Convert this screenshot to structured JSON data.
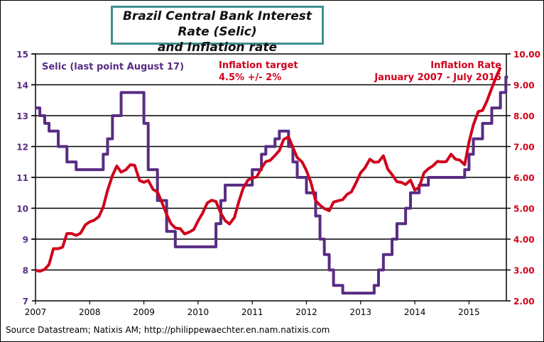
{
  "chart_data": {
    "type": "line",
    "title": "Brazil Central Bank Interest Rate (Selic) and Inflation rate",
    "title_lines": [
      "Brazil Central Bank Interest Rate (Selic)",
      "and Inflation rate"
    ],
    "xlabel": "",
    "ylabel_left": "",
    "ylabel_right": "",
    "x_ticks": [
      "2007",
      "2008",
      "2009",
      "2010",
      "2011",
      "2012",
      "2013",
      "2014",
      "2015"
    ],
    "xlim": [
      2007,
      2015.85
    ],
    "y_left": {
      "lim": [
        7,
        15
      ],
      "ticks": [
        "7",
        "8",
        "9",
        "10",
        "11",
        "12",
        "13",
        "14",
        "15"
      ],
      "color": "#582c83"
    },
    "y_right": {
      "lim": [
        2,
        10
      ],
      "ticks": [
        "2.00",
        "3.00",
        "4.00",
        "5.00",
        "6.00",
        "7.00",
        "8.00",
        "9.00",
        "10.00"
      ],
      "color": "#d0021b"
    },
    "grid": true,
    "annotations": {
      "selic": "Selic (last point August 17)",
      "target_line1": "Inflation  target",
      "target_line2": "4.5% +/- 2%",
      "inflation_line1": "Inflation Rate",
      "inflation_line2": "January 2007 - July 2015"
    },
    "series": [
      {
        "name": "Selic",
        "axis": "left",
        "color": "#582c83",
        "style": "step",
        "x": [
          2007.0,
          2007.08,
          2007.17,
          2007.25,
          2007.42,
          2007.58,
          2007.75,
          2008.25,
          2008.33,
          2008.42,
          2008.58,
          2008.67,
          2009.0,
          2009.08,
          2009.25,
          2009.42,
          2009.58,
          2010.33,
          2010.42,
          2010.5,
          2010.58,
          2011.0,
          2011.17,
          2011.25,
          2011.33,
          2011.42,
          2011.5,
          2011.67,
          2011.75,
          2011.83,
          2011.92,
          2012.0,
          2012.17,
          2012.25,
          2012.33,
          2012.42,
          2012.5,
          2012.67,
          2012.75,
          2012.83,
          2013.25,
          2013.33,
          2013.42,
          2013.58,
          2013.67,
          2013.83,
          2013.92,
          2014.08,
          2014.17,
          2014.25,
          2014.33,
          2014.92,
          2015.0,
          2015.08,
          2015.25,
          2015.42,
          2015.58,
          2015.68
        ],
        "values": [
          13.25,
          13.0,
          12.75,
          12.5,
          12.0,
          11.5,
          11.25,
          11.75,
          12.25,
          13.0,
          13.75,
          13.75,
          12.75,
          11.25,
          10.25,
          9.25,
          8.75,
          9.5,
          10.25,
          10.75,
          10.75,
          11.25,
          11.75,
          12.0,
          12.0,
          12.25,
          12.5,
          12.0,
          11.5,
          11.0,
          11.0,
          10.5,
          9.75,
          9.0,
          8.5,
          8.0,
          7.5,
          7.25,
          7.25,
          7.25,
          7.5,
          8.0,
          8.5,
          9.0,
          9.5,
          10.0,
          10.5,
          10.75,
          10.75,
          11.0,
          11.0,
          11.25,
          11.75,
          12.25,
          12.75,
          13.25,
          13.75,
          14.25
        ]
      },
      {
        "name": "Inflation",
        "axis": "right",
        "color": "#d0021b",
        "style": "line",
        "x": [
          2007.0,
          2007.08,
          2007.17,
          2007.25,
          2007.33,
          2007.42,
          2007.5,
          2007.58,
          2007.67,
          2007.75,
          2007.83,
          2007.92,
          2008.0,
          2008.08,
          2008.17,
          2008.25,
          2008.33,
          2008.42,
          2008.5,
          2008.58,
          2008.67,
          2008.75,
          2008.83,
          2008.92,
          2009.0,
          2009.08,
          2009.17,
          2009.25,
          2009.33,
          2009.42,
          2009.5,
          2009.58,
          2009.67,
          2009.75,
          2009.83,
          2009.92,
          2010.0,
          2010.08,
          2010.17,
          2010.25,
          2010.33,
          2010.42,
          2010.5,
          2010.58,
          2010.67,
          2010.75,
          2010.83,
          2010.92,
          2011.0,
          2011.08,
          2011.17,
          2011.25,
          2011.33,
          2011.42,
          2011.5,
          2011.58,
          2011.67,
          2011.75,
          2011.83,
          2011.92,
          2012.0,
          2012.08,
          2012.17,
          2012.25,
          2012.33,
          2012.42,
          2012.5,
          2012.58,
          2012.67,
          2012.75,
          2012.83,
          2012.92,
          2013.0,
          2013.08,
          2013.17,
          2013.25,
          2013.33,
          2013.42,
          2013.5,
          2013.58,
          2013.67,
          2013.75,
          2013.83,
          2013.92,
          2014.0,
          2014.08,
          2014.17,
          2014.25,
          2014.33,
          2014.42,
          2014.5,
          2014.58,
          2014.67,
          2014.75,
          2014.83,
          2014.92,
          2015.0,
          2015.08,
          2015.17,
          2015.25,
          2015.33,
          2015.42,
          2015.5,
          2015.58
        ],
        "values": [
          2.99,
          2.96,
          3.02,
          3.18,
          3.69,
          3.69,
          3.74,
          4.18,
          4.18,
          4.12,
          4.19,
          4.46,
          4.56,
          4.61,
          4.73,
          5.04,
          5.58,
          6.06,
          6.37,
          6.17,
          6.25,
          6.41,
          6.39,
          5.9,
          5.84,
          5.9,
          5.61,
          5.53,
          5.2,
          4.8,
          4.5,
          4.36,
          4.34,
          4.17,
          4.22,
          4.31,
          4.59,
          4.83,
          5.17,
          5.26,
          5.22,
          4.84,
          4.6,
          4.49,
          4.7,
          5.2,
          5.64,
          5.91,
          5.99,
          6.01,
          6.3,
          6.51,
          6.55,
          6.71,
          6.87,
          7.23,
          7.31,
          6.97,
          6.64,
          6.5,
          6.22,
          5.85,
          5.24,
          5.1,
          4.99,
          4.92,
          5.2,
          5.24,
          5.28,
          5.45,
          5.53,
          5.84,
          6.15,
          6.31,
          6.59,
          6.49,
          6.5,
          6.7,
          6.27,
          6.09,
          5.86,
          5.84,
          5.77,
          5.91,
          5.59,
          5.68,
          6.15,
          6.28,
          6.37,
          6.52,
          6.5,
          6.51,
          6.75,
          6.59,
          6.56,
          6.41,
          7.14,
          7.7,
          8.13,
          8.17,
          8.47,
          8.89,
          9.25,
          9.56
        ]
      }
    ]
  },
  "footer": {
    "source": "Source Datastream; Natixis AM; http://philippewaechter.en.nam.natixis.com"
  }
}
